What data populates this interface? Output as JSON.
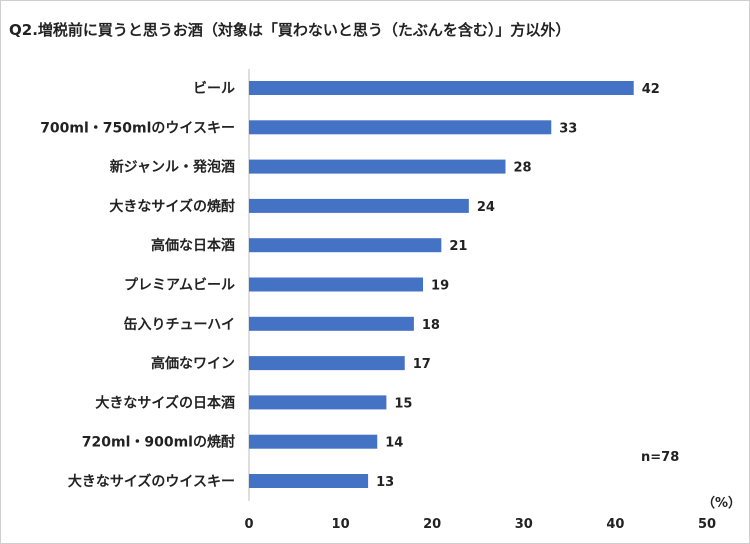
{
  "title": "Q2.増税前に買うと思うお酒（対象は「買わないと思う（たぶんを含む）」方以外）",
  "chart_data": {
    "type": "bar",
    "orientation": "horizontal",
    "title": "Q2.増税前に買うと思うお酒（対象は「買わないと思う（たぶんを含む）」方以外）",
    "categories": [
      "ビール",
      "700ml・750mlのウイスキー",
      "新ジャンル・発泡酒",
      "大きなサイズの焼酎",
      "高価な日本酒",
      "プレミアムビール",
      "缶入りチューハイ",
      "高価なワイン",
      "大きなサイズの日本酒",
      "720ml・900mlの焼酎",
      "大きなサイズのウイスキー"
    ],
    "values": [
      42,
      33,
      28,
      24,
      21,
      19,
      18,
      17,
      15,
      14,
      13
    ],
    "xlim": [
      0,
      50
    ],
    "xticks": [
      0,
      10,
      20,
      30,
      40,
      50
    ],
    "unit_label": "（%）",
    "annotation": "n=78",
    "bar_color": "#4472c4",
    "grid": false
  }
}
